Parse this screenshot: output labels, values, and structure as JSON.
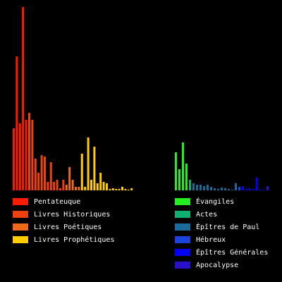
{
  "chart_data": {
    "type": "bar",
    "series": [
      {
        "name": "Pentateuque",
        "color": "#ff1a00",
        "values": [
          88,
          190,
          95,
          260,
          100
        ]
      },
      {
        "name": "Livres Historiques",
        "color": "#f0400c",
        "values": [
          110,
          100,
          45,
          25,
          50,
          48,
          12,
          40,
          12,
          15,
          3,
          15
        ]
      },
      {
        "name": "Livres Poétiques",
        "color": "#f0681a",
        "values": [
          8,
          33,
          15,
          5,
          5
        ]
      },
      {
        "name": "Livres Prophétiques",
        "color": "#ffcc00",
        "values": [
          52,
          5,
          75,
          15,
          62,
          10,
          25,
          12,
          10,
          2,
          3,
          2,
          2,
          5,
          2,
          1,
          3
        ]
      },
      {
        "name": "Évangiles",
        "color": "#22ee22",
        "values": [
          54,
          30,
          68,
          38
        ]
      },
      {
        "name": "Actes",
        "color": "#10b070",
        "values": [
          15
        ]
      },
      {
        "name": "Épîtres de Paul",
        "color": "#1a6a9a",
        "values": [
          10,
          8,
          8,
          6,
          8,
          5,
          3,
          2,
          4,
          3,
          2,
          1,
          10
        ]
      },
      {
        "name": "Hébreux",
        "color": "#1a44dd",
        "values": [
          5
        ]
      },
      {
        "name": "Épîtres Générales",
        "color": "#0000ff",
        "values": [
          6,
          2,
          3,
          2,
          18,
          1,
          1
        ]
      },
      {
        "name": "Apocalypse",
        "color": "#2a10c8",
        "values": [
          6
        ]
      }
    ]
  }
}
